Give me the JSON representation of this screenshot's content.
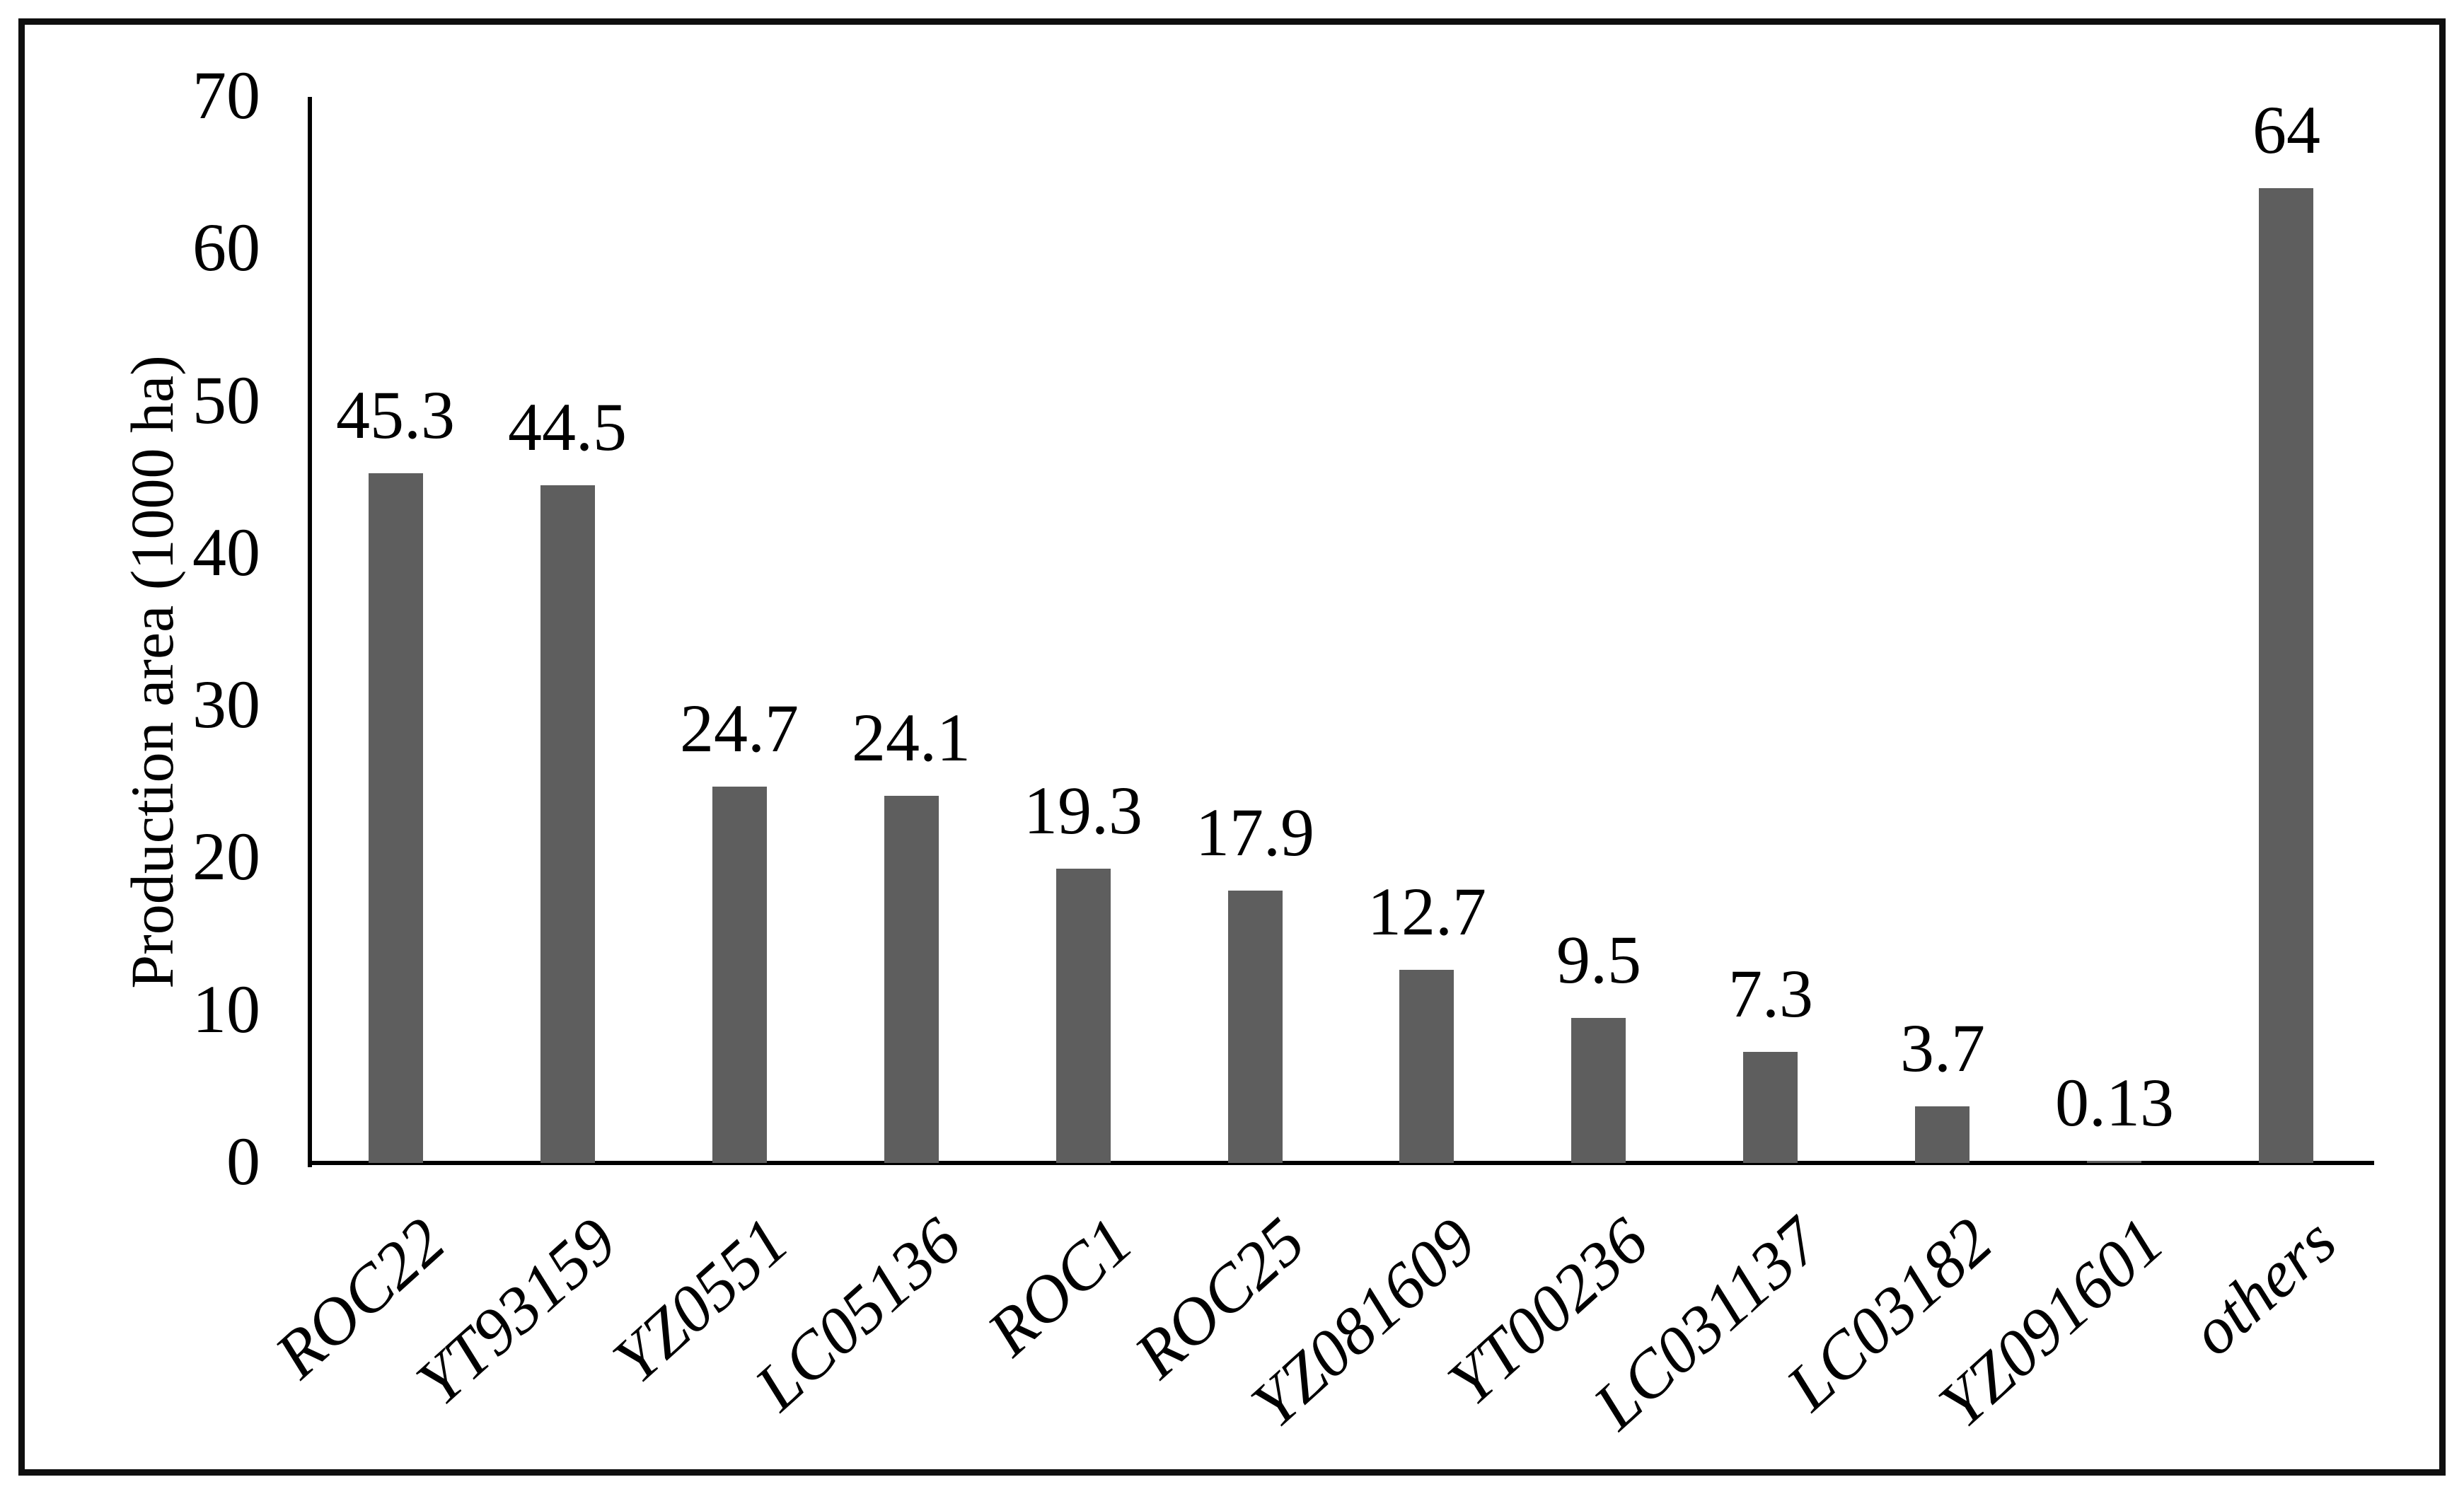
{
  "chart_data": {
    "type": "bar",
    "title": "",
    "xlabel": "",
    "ylabel": "Production area (1000 ha)",
    "categories": [
      "ROC22",
      "YT93159",
      "YZ0551",
      "LC05136",
      "ROC1",
      "ROC25",
      "YZ081609",
      "YT00236",
      "LC031137",
      "LC03182",
      "YZ091601",
      "others"
    ],
    "values": [
      45.3,
      44.5,
      24.7,
      24.1,
      19.3,
      17.9,
      12.7,
      9.5,
      7.3,
      3.7,
      0.13,
      64
    ],
    "value_labels": [
      "45.3",
      "44.5",
      "24.7",
      "24.1",
      "19.3",
      "17.9",
      "12.7",
      "9.5",
      "7.3",
      "3.7",
      "0.13",
      "64"
    ],
    "ylim": [
      0,
      70
    ],
    "yticks": [
      "0",
      "10",
      "20",
      "30",
      "40",
      "50",
      "60",
      "70"
    ],
    "grid": "off",
    "legend": "none",
    "bar_color": "#5E5E5E",
    "axis_color": "#000000",
    "frame_color": "#0F0F0F",
    "background_color": "#FFFFFF"
  }
}
